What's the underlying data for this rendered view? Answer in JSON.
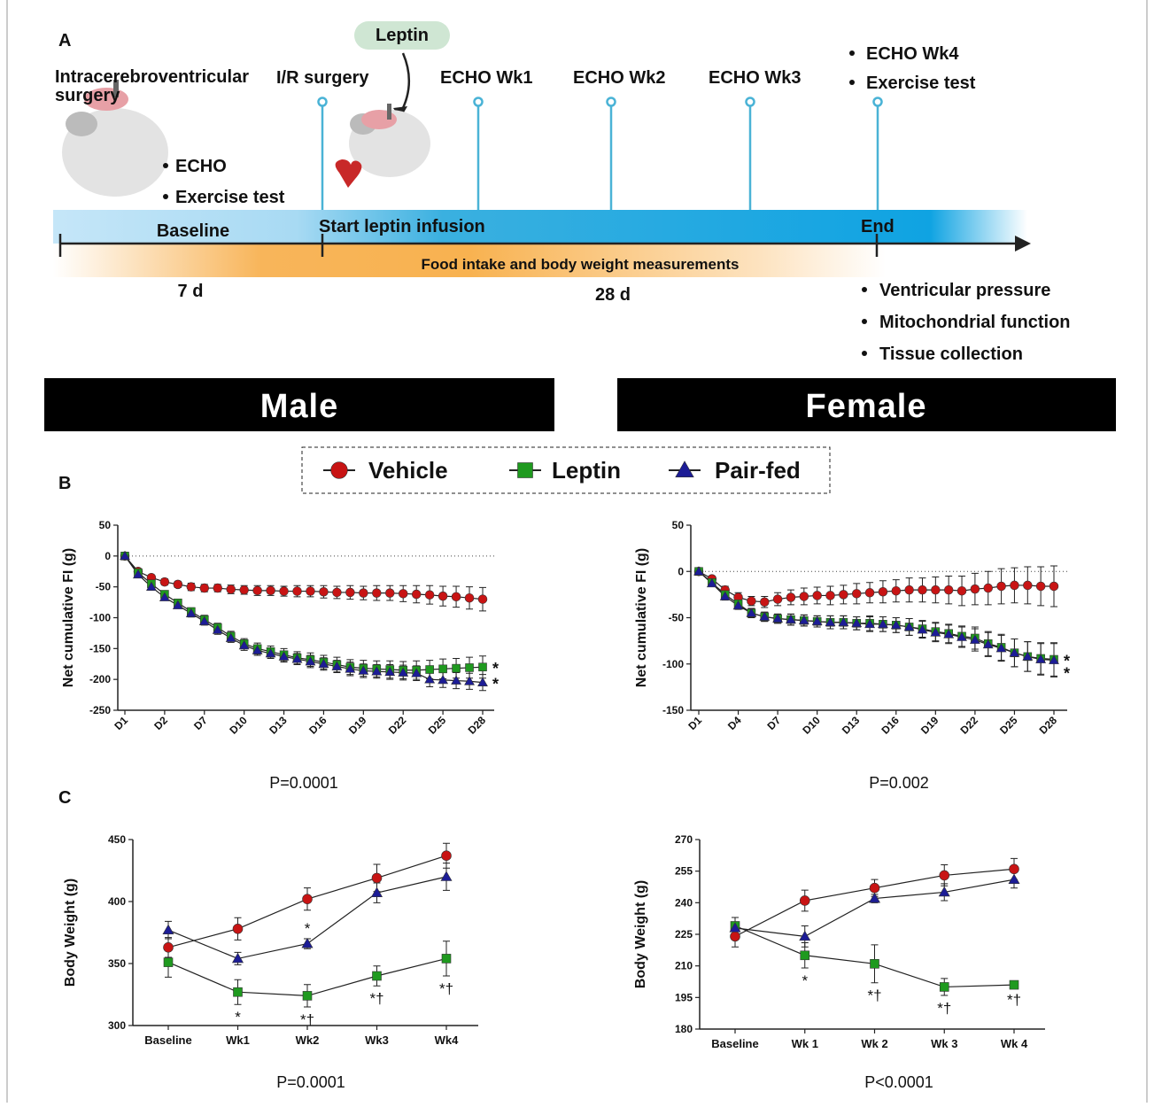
{
  "figure": {
    "panel_labels": [
      "A",
      "B",
      "C"
    ],
    "groups": [
      "Male",
      "Female"
    ],
    "timeline": {
      "injection": "Leptin",
      "start_surgery": [
        "Intracerebroventricular",
        "surgery"
      ],
      "ir_surgery": "I/R surgery",
      "echo": [
        "ECHO Wk1",
        "ECHO Wk2",
        "ECHO Wk3"
      ],
      "end_tests": [
        "ECHO Wk4",
        "Exercise test"
      ],
      "baseline_tests": [
        "ECHO",
        "Exercise test"
      ],
      "baseline": "Baseline",
      "start": "Start leptin infusion",
      "end": "End",
      "measurements": "Food intake and body weight measurements",
      "baseline_duration": "7 d",
      "treatment_duration": "28 d",
      "terminal": [
        "Ventricular pressure",
        "Mitochondrial function",
        "Tissue collection"
      ]
    }
  },
  "chart_data": [
    {
      "type": "line",
      "y_label": "Net cumulative FI (g)",
      "footnote": "P=0.0001",
      "zero_line": true,
      "categories": [
        "D1",
        null,
        null,
        "D2",
        null,
        null,
        "D7",
        null,
        null,
        "D10",
        null,
        null,
        "D13",
        null,
        null,
        "D16",
        null,
        null,
        "D19",
        null,
        null,
        "D22",
        null,
        null,
        "D25",
        null,
        null,
        "D28"
      ],
      "ylim": [
        -250,
        50
      ],
      "yticks": [
        50,
        0,
        -50,
        -100,
        -150,
        -200,
        -250
      ],
      "series": [
        {
          "name": "Vehicle",
          "color": "#c81414",
          "marker": "circle",
          "values": [
            0,
            -25,
            -35,
            -42,
            -46,
            -50,
            -52,
            -52,
            -54,
            -55,
            -56,
            -56,
            -57,
            -57,
            -57,
            -58,
            -59,
            -59,
            -60,
            -60,
            -60,
            -61,
            -62,
            -63,
            -65,
            -66,
            -68,
            -70
          ],
          "errors": [
            0,
            3,
            4,
            5,
            5,
            6,
            6,
            6,
            7,
            7,
            8,
            8,
            8,
            9,
            9,
            10,
            10,
            11,
            11,
            12,
            12,
            13,
            14,
            15,
            16,
            17,
            18,
            19
          ]
        },
        {
          "name": "Leptin",
          "color": "#1f9a1f",
          "marker": "square",
          "values": [
            0,
            -27,
            -45,
            -62,
            -76,
            -90,
            -103,
            -116,
            -130,
            -142,
            -150,
            -155,
            -160,
            -165,
            -168,
            -172,
            -176,
            -180,
            -182,
            -183,
            -184,
            -185,
            -185,
            -184,
            -183,
            -182,
            -181,
            -180
          ],
          "errors": [
            0,
            3,
            4,
            5,
            6,
            6,
            7,
            7,
            8,
            8,
            9,
            9,
            10,
            10,
            11,
            11,
            12,
            12,
            13,
            13,
            14,
            14,
            15,
            15,
            16,
            16,
            17,
            18
          ],
          "end_label": "*"
        },
        {
          "name": "Pair-fed",
          "color": "#1c1c96",
          "marker": "triangle",
          "values": [
            0,
            -30,
            -50,
            -67,
            -80,
            -93,
            -106,
            -120,
            -133,
            -145,
            -153,
            -158,
            -163,
            -167,
            -171,
            -175,
            -179,
            -183,
            -186,
            -187,
            -188,
            -189,
            -190,
            -200,
            -201,
            -202,
            -203,
            -205
          ],
          "errors": [
            0,
            3,
            4,
            5,
            5,
            6,
            6,
            7,
            7,
            8,
            8,
            8,
            9,
            9,
            10,
            10,
            10,
            11,
            11,
            11,
            12,
            12,
            12,
            12,
            12,
            13,
            13,
            13
          ],
          "end_label": "*"
        }
      ]
    },
    {
      "type": "line",
      "y_label": "Net cumulative FI (g)",
      "footnote": "P=0.002",
      "zero_line": true,
      "categories": [
        "D1",
        null,
        null,
        "D4",
        null,
        null,
        "D7",
        null,
        null,
        "D10",
        null,
        null,
        "D13",
        null,
        null,
        "D16",
        null,
        null,
        "D19",
        null,
        null,
        "D22",
        null,
        null,
        "D25",
        null,
        null,
        "D28"
      ],
      "ylim": [
        -150,
        50
      ],
      "yticks": [
        50,
        0,
        -50,
        -100,
        -150
      ],
      "series": [
        {
          "name": "Vehicle",
          "color": "#c81414",
          "marker": "circle",
          "values": [
            0,
            -8,
            -20,
            -28,
            -32,
            -33,
            -30,
            -28,
            -27,
            -26,
            -26,
            -25,
            -24,
            -23,
            -22,
            -21,
            -20,
            -20,
            -20,
            -20,
            -21,
            -19,
            -18,
            -16,
            -15,
            -15,
            -16,
            -16
          ],
          "errors": [
            0,
            3,
            4,
            5,
            5,
            6,
            7,
            8,
            9,
            9,
            10,
            10,
            11,
            11,
            12,
            12,
            13,
            13,
            14,
            15,
            16,
            17,
            18,
            19,
            19,
            20,
            21,
            22
          ]
        },
        {
          "name": "Leptin",
          "color": "#1f9a1f",
          "marker": "square",
          "values": [
            0,
            -12,
            -25,
            -35,
            -45,
            -49,
            -51,
            -52,
            -53,
            -54,
            -55,
            -55,
            -56,
            -56,
            -57,
            -58,
            -60,
            -62,
            -65,
            -67,
            -70,
            -72,
            -78,
            -82,
            -88,
            -92,
            -94,
            -95
          ],
          "errors": [
            0,
            3,
            4,
            4,
            5,
            5,
            5,
            6,
            6,
            6,
            7,
            7,
            7,
            8,
            8,
            8,
            9,
            9,
            10,
            10,
            11,
            12,
            13,
            14,
            15,
            16,
            17,
            18
          ],
          "end_label": "*"
        },
        {
          "name": "Pair-fed",
          "color": "#1c1c96",
          "marker": "triangle",
          "values": [
            0,
            -13,
            -27,
            -37,
            -45,
            -49,
            -51,
            -52,
            -53,
            -54,
            -55,
            -55,
            -56,
            -57,
            -57,
            -58,
            -60,
            -63,
            -66,
            -68,
            -71,
            -74,
            -79,
            -83,
            -88,
            -92,
            -95,
            -96
          ],
          "errors": [
            0,
            3,
            4,
            4,
            5,
            5,
            5,
            6,
            6,
            6,
            7,
            7,
            7,
            8,
            8,
            8,
            9,
            9,
            10,
            10,
            11,
            12,
            13,
            14,
            15,
            16,
            17,
            18
          ],
          "end_label": "*"
        }
      ]
    },
    {
      "type": "line",
      "y_label": "Body Weight (g)",
      "footnote": "P=0.0001",
      "categories": [
        "Baseline",
        "Wk1",
        "Wk2",
        "Wk3",
        "Wk4"
      ],
      "ylim": [
        300,
        450
      ],
      "yticks": [
        300,
        350,
        400,
        450
      ],
      "series": [
        {
          "name": "Vehicle",
          "color": "#c81414",
          "marker": "circle",
          "values": [
            363,
            378,
            402,
            419,
            437
          ],
          "errors": [
            8,
            9,
            9,
            11,
            10
          ]
        },
        {
          "name": "Leptin",
          "color": "#1f9a1f",
          "marker": "square",
          "values": [
            351,
            327,
            324,
            340,
            354
          ],
          "errors": [
            12,
            10,
            9,
            8,
            14
          ],
          "point_labels": [
            null,
            "*",
            "*†",
            "*†",
            "*†"
          ]
        },
        {
          "name": "Pair-fed",
          "color": "#1c1c96",
          "marker": "triangle",
          "values": [
            377,
            354,
            366,
            407,
            420
          ],
          "errors": [
            7,
            5,
            4,
            8,
            11
          ],
          "point_labels": [
            null,
            null,
            "*",
            null,
            null
          ]
        }
      ]
    },
    {
      "type": "line",
      "y_label": "Body Weight (g)",
      "footnote": "P<0.0001",
      "categories": [
        "Baseline",
        "Wk 1",
        "Wk 2",
        "Wk 3",
        "Wk 4"
      ],
      "ylim": [
        180,
        270
      ],
      "yticks": [
        180,
        195,
        210,
        225,
        240,
        255,
        270
      ],
      "series": [
        {
          "name": "Vehicle",
          "color": "#c81414",
          "marker": "circle",
          "values": [
            224,
            241,
            247,
            253,
            256
          ],
          "errors": [
            5,
            5,
            4,
            5,
            5
          ]
        },
        {
          "name": "Leptin",
          "color": "#1f9a1f",
          "marker": "square",
          "values": [
            229,
            215,
            211,
            200,
            201
          ],
          "errors": [
            4,
            6,
            9,
            4,
            1
          ],
          "point_labels": [
            null,
            "*",
            "*†",
            "*†",
            "*†"
          ]
        },
        {
          "name": "Pair-fed",
          "color": "#1c1c96",
          "marker": "triangle",
          "values": [
            228,
            224,
            242,
            245,
            251
          ],
          "errors": [
            5,
            5,
            2,
            4,
            4
          ]
        }
      ]
    }
  ]
}
